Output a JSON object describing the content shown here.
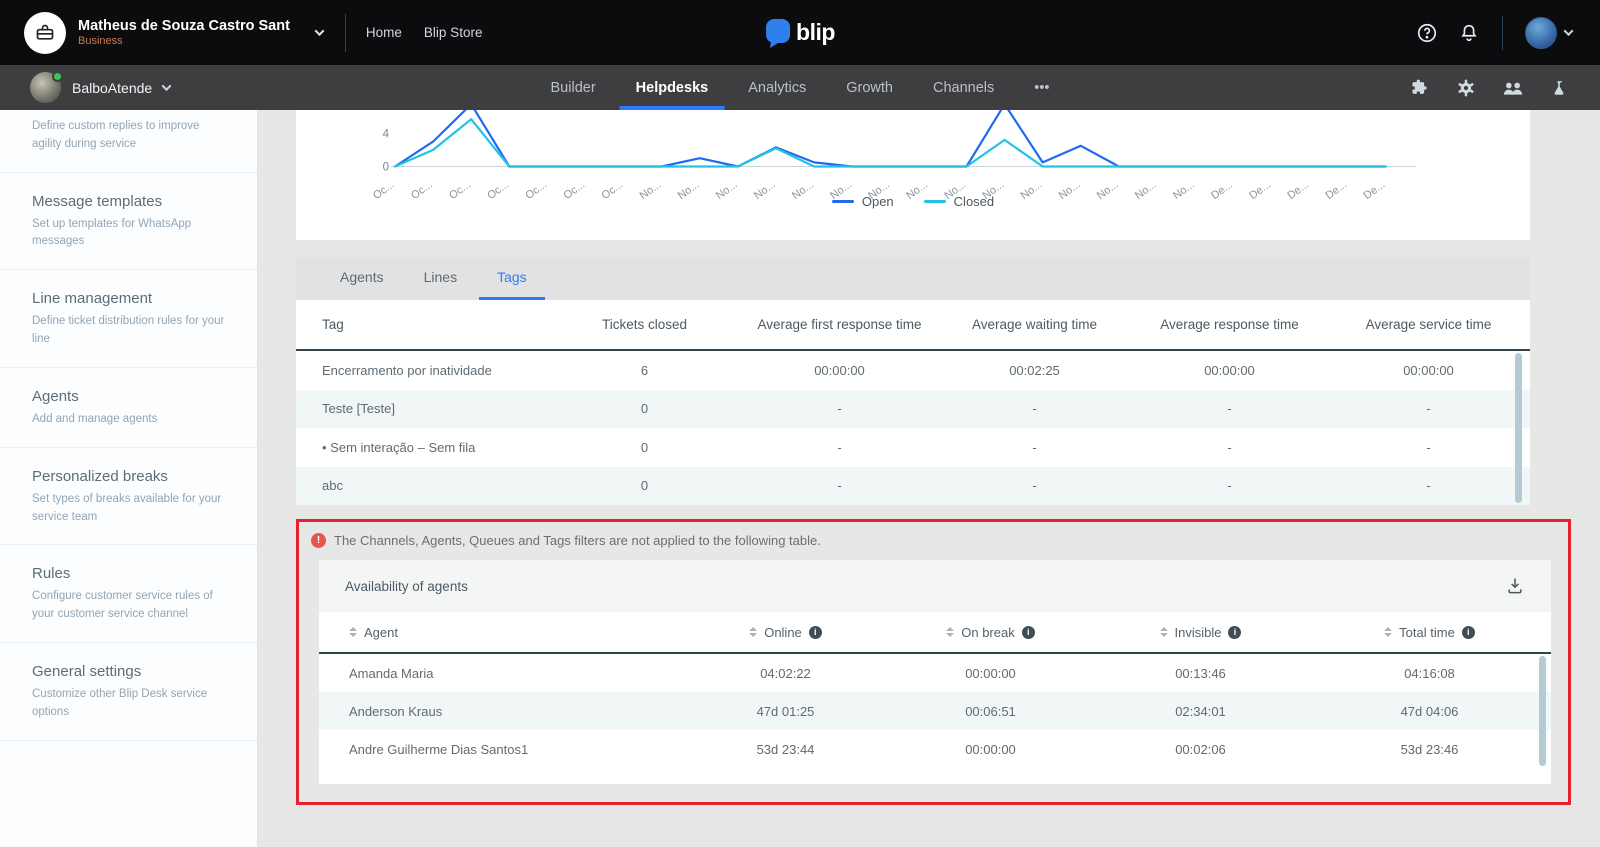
{
  "topbar": {
    "account_name": "Matheus de Souza Castro Sant",
    "account_type": "Business",
    "links": [
      "Home",
      "Blip Store"
    ],
    "logo_text": "blip"
  },
  "appbar": {
    "bot_name": "BalboAtende",
    "nav": [
      {
        "label": "Builder",
        "active": false
      },
      {
        "label": "Helpdesks",
        "active": true
      },
      {
        "label": "Analytics",
        "active": false
      },
      {
        "label": "Growth",
        "active": false
      },
      {
        "label": "Channels",
        "active": false
      },
      {
        "label": "•••",
        "active": false
      }
    ],
    "icons": [
      "puzzle-icon",
      "gear-icon",
      "users-icon",
      "flask-icon"
    ]
  },
  "sidebar": {
    "items": [
      {
        "title": "",
        "description": "Define custom replies to improve agility during service"
      },
      {
        "title": "Message templates",
        "description": "Set up templates for WhatsApp messages"
      },
      {
        "title": "Line management",
        "description": "Define ticket distribution rules for your line"
      },
      {
        "title": "Agents",
        "description": "Add and manage agents"
      },
      {
        "title": "Personalized breaks",
        "description": "Set types of breaks available for your service team"
      },
      {
        "title": "Rules",
        "description": "Configure customer service rules of your customer service channel"
      },
      {
        "title": "General settings",
        "description": "Customize other Blip Desk service options"
      }
    ]
  },
  "chart_data": {
    "type": "line",
    "x": [
      "Oc...",
      "Oc...",
      "Oc...",
      "Oc...",
      "Oc...",
      "Oc...",
      "Oc...",
      "No...",
      "No...",
      "No...",
      "No...",
      "No...",
      "No...",
      "No...",
      "No...",
      "No...",
      "No...",
      "No...",
      "No...",
      "No...",
      "No...",
      "No...",
      "De...",
      "De...",
      "De...",
      "De...",
      "De..."
    ],
    "series": [
      {
        "name": "Open",
        "color": "#1e6bf1",
        "values": [
          0,
          3,
          7.5,
          0,
          0,
          0,
          0,
          0,
          1,
          0,
          2.3,
          0.5,
          0,
          0,
          0,
          0,
          7.5,
          0.5,
          2.5,
          0,
          0,
          0,
          0,
          0,
          0,
          0,
          0
        ]
      },
      {
        "name": "Closed",
        "color": "#22c3e2",
        "values": [
          0,
          2,
          5.7,
          0,
          0,
          0,
          0,
          0,
          0,
          0,
          2.2,
          0,
          0,
          0,
          0,
          0,
          3.2,
          0,
          0,
          0,
          0,
          0,
          0,
          0,
          0,
          0,
          0
        ]
      }
    ],
    "yticks": [
      0,
      4
    ],
    "grid": false,
    "legend_position": "bottom",
    "note_visible_region": "chart top cropped by page scroll"
  },
  "tabs": [
    {
      "label": "Agents",
      "active": false
    },
    {
      "label": "Lines",
      "active": false
    },
    {
      "label": "Tags",
      "active": true
    }
  ],
  "tags_table": {
    "columns": [
      "Tag",
      "Tickets closed",
      "Average first response time",
      "Average waiting time",
      "Average response time",
      "Average service time"
    ],
    "rows": [
      [
        "Encerramento por inatividade",
        "6",
        "00:00:00",
        "00:02:25",
        "00:00:00",
        "00:00:00"
      ],
      [
        "Teste [Teste]",
        "0",
        "-",
        "-",
        "-",
        "-"
      ],
      [
        "• Sem interação – Sem fila",
        "0",
        "-",
        "-",
        "-",
        "-"
      ],
      [
        "abc",
        "0",
        "-",
        "-",
        "-",
        "-"
      ]
    ]
  },
  "filters_notice": "The Channels, Agents, Queues and Tags filters are not applied to the following table.",
  "availability": {
    "title": "Availability of agents",
    "columns": [
      {
        "label": "Agent",
        "sortable": true,
        "info": false
      },
      {
        "label": "Online",
        "sortable": true,
        "info": true
      },
      {
        "label": "On break",
        "sortable": true,
        "info": true
      },
      {
        "label": "Invisible",
        "sortable": true,
        "info": true
      },
      {
        "label": "Total time",
        "sortable": true,
        "info": true
      }
    ],
    "rows": [
      [
        "Amanda Maria",
        "04:02:22",
        "00:00:00",
        "00:13:46",
        "04:16:08"
      ],
      [
        "Anderson Kraus",
        "47d 01:25",
        "00:06:51",
        "02:34:01",
        "47d 04:06"
      ],
      [
        "Andre Guilherme Dias Santos1",
        "53d 23:44",
        "00:00:00",
        "00:02:06",
        "53d 23:46"
      ]
    ]
  },
  "colors": {
    "accent_blue": "#2f7af7",
    "open_line": "#1e6bf1",
    "closed_line": "#22c3e2",
    "highlight_red": "#e8212e",
    "warning_icon": "#e4574e",
    "business_orange": "#cc7a52",
    "row_alt": "#f1f6f7"
  }
}
